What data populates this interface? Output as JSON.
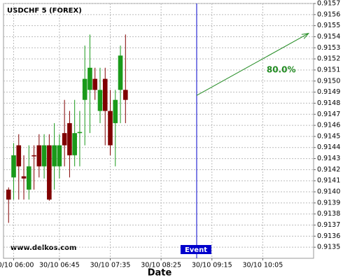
{
  "chart_data": {
    "type": "candlestick",
    "title": "USDCHF 5 (FOREX)",
    "x_label": "Date",
    "watermark": "www.delkos.com",
    "x": [
      "30/10 05:55",
      "30/10 06:00",
      "30/10 06:05",
      "30/10 06:10",
      "30/10 06:15",
      "30/10 06:20",
      "30/10 06:25",
      "30/10 06:30",
      "30/10 06:35",
      "30/10 06:40",
      "30/10 06:45",
      "30/10 06:50",
      "30/10 06:55",
      "30/10 07:00",
      "30/10 07:05",
      "30/10 07:10",
      "30/10 07:15",
      "30/10 07:20",
      "30/10 07:25",
      "30/10 07:30",
      "30/10 07:35",
      "30/10 07:40",
      "30/10 07:45",
      "30/10 07:50"
    ],
    "open": [
      0.91402,
      0.91413,
      0.91442,
      0.91414,
      0.91402,
      0.91433,
      0.91442,
      0.91423,
      0.91442,
      0.91423,
      0.91423,
      0.91453,
      0.91462,
      0.91433,
      0.91453,
      0.91483,
      0.91492,
      0.91502,
      0.91473,
      0.91502,
      0.91473,
      0.91462,
      0.91492,
      0.91492
    ],
    "high": [
      0.91404,
      0.91444,
      0.91452,
      0.91433,
      0.91442,
      0.91442,
      0.91452,
      0.91452,
      0.91452,
      0.91462,
      0.91452,
      0.91483,
      0.91473,
      0.91483,
      0.91473,
      0.91532,
      0.91542,
      0.91512,
      0.91512,
      0.91512,
      0.91492,
      0.91492,
      0.91532,
      0.91542
    ],
    "low": [
      0.91372,
      0.91393,
      0.91393,
      0.91393,
      0.91393,
      0.91402,
      0.91413,
      0.91412,
      0.91392,
      0.91402,
      0.91412,
      0.91423,
      0.91413,
      0.91423,
      0.91423,
      0.91442,
      0.91453,
      0.91483,
      0.91462,
      0.91442,
      0.91433,
      0.91423,
      0.91462,
      0.91462
    ],
    "close": [
      0.91393,
      0.91433,
      0.91423,
      0.91412,
      0.91423,
      0.91432,
      0.91423,
      0.91442,
      0.91393,
      0.91442,
      0.91442,
      0.91442,
      0.91433,
      0.91453,
      0.91454,
      0.91502,
      0.91512,
      0.91492,
      0.91492,
      0.91473,
      0.91442,
      0.91483,
      0.91523,
      0.91483
    ],
    "up_color": "#1a9a1a",
    "down_color": "#800000",
    "xlim": [
      "30/10 05:50",
      "30/10 10:55"
    ],
    "xticks": [
      "30/10 06:00",
      "30/10 06:45",
      "30/10 07:35",
      "30/10 08:25",
      "30/10 09:15",
      "30/10 10:05"
    ],
    "ylim": [
      0.9134,
      0.9157
    ],
    "yticks": [
      0.9135,
      0.9136,
      0.9137,
      0.9138,
      0.9139,
      {
        "value": 0.914,
        "label": "0.9140"
      },
      0.9141,
      0.9142,
      0.9143,
      0.9144,
      0.9145,
      0.9146,
      0.9147,
      0.9148,
      0.9149,
      {
        "value": 0.915,
        "label": "0.9150"
      },
      0.9151,
      0.9152,
      0.9153,
      0.9154,
      0.9155,
      0.9156,
      0.9157
    ],
    "grid": true,
    "event": {
      "x": "30/10 09:00",
      "label": "Event",
      "color": "#0000cc"
    },
    "arrow": {
      "x": [
        "30/10 09:00",
        "30/10 10:50"
      ],
      "y": [
        0.91487,
        0.91543
      ],
      "label": "80.0%",
      "color": "#228b22"
    }
  }
}
